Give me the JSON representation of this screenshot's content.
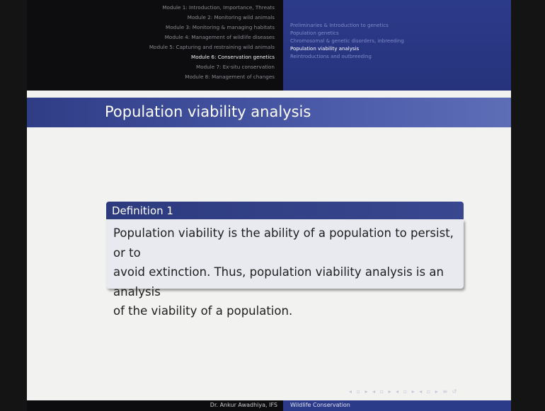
{
  "header": {
    "modules": [
      "Module 1: Introduction, Importance, Threats",
      "Module 2: Monitoring wild animals",
      "Module 3: Monitoring & managing habitats",
      "Module 4: Management of wildlife diseases",
      "Module 5: Capturing and restraining wild animals",
      "Module 6: Conservation genetics",
      "Module 7: Ex-situ conservation",
      "Module 8: Management of changes"
    ],
    "sections": [
      "Preliminaries & Introduction to genetics",
      "Population genetics",
      "Chromosomal & genetic disorders, inbreeding",
      "Population viability analysis",
      "Reintroductions and outbreeding"
    ]
  },
  "title": "Population viability analysis",
  "block": {
    "title": "Definition 1",
    "body": [
      "Population viability is the ability of a population to persist, or to",
      "avoid extinction. Thus, population viability analysis is an analysis",
      "of the viability of a population."
    ]
  },
  "footer": {
    "author": "Dr. Ankur Awadhiya, IFS",
    "course": "Wildlife Conservation"
  }
}
